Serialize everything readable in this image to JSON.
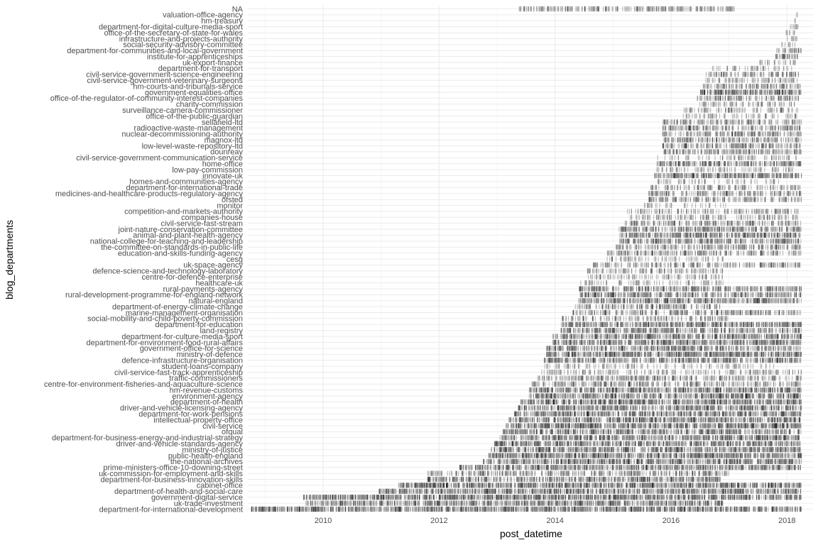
{
  "chart_data": {
    "type": "strip",
    "title": "",
    "xlabel": "post_datetime",
    "ylabel": "blog_departments",
    "x_ticks": [
      2010,
      2012,
      2014,
      2016,
      2018
    ],
    "x_tick_labels": [
      "2010",
      "2012",
      "2014",
      "2016",
      "2018"
    ],
    "xlim": [
      2008.7,
      2018.45
    ],
    "grid": true,
    "mark_color": "#000000",
    "mark_alpha": 0.3,
    "categories": [
      {
        "name": "NA",
        "start": 2013.35,
        "end": 2017.1,
        "density": 0.6
      },
      {
        "name": "valuation-office-agency",
        "start": 2018.15,
        "end": 2018.2,
        "density": 0.3
      },
      {
        "name": "hm-treasury",
        "start": 2018.1,
        "end": 2018.2,
        "density": 0.3
      },
      {
        "name": "department-for-digital-culture-media-sport",
        "start": 2018.05,
        "end": 2018.2,
        "density": 0.5
      },
      {
        "name": "office-of-the-secretary-of-state-for-wales",
        "start": 2017.95,
        "end": 2018.2,
        "density": 0.4
      },
      {
        "name": "infrastructure-and-projects-authority",
        "start": 2018.0,
        "end": 2018.2,
        "density": 0.5
      },
      {
        "name": "social-security-advisory-committee",
        "start": 2017.85,
        "end": 2018.15,
        "density": 0.3
      },
      {
        "name": "department-for-communities-and-local-government",
        "start": 2017.8,
        "end": 2018.25,
        "density": 0.6
      },
      {
        "name": "institute-for-apprenticeships",
        "start": 2017.8,
        "end": 2018.2,
        "density": 0.7
      },
      {
        "name": "uk-export-finance",
        "start": 2017.5,
        "end": 2018.15,
        "density": 0.4
      },
      {
        "name": "department-for-transport",
        "start": 2016.7,
        "end": 2018.2,
        "density": 0.4
      },
      {
        "name": "civil-service-government-science-engineering",
        "start": 2016.6,
        "end": 2018.2,
        "density": 0.6
      },
      {
        "name": "civil-service-government-veterinary-surgeons",
        "start": 2016.6,
        "end": 2018.2,
        "density": 0.5
      },
      {
        "name": "hm-courts-and-tribunals-service",
        "start": 2016.55,
        "end": 2018.25,
        "density": 0.6
      },
      {
        "name": "government-equalities-office",
        "start": 2016.5,
        "end": 2018.25,
        "density": 0.95
      },
      {
        "name": "office-of-the-regulator-of-community-interest-companies",
        "start": 2016.45,
        "end": 2018.2,
        "density": 0.6
      },
      {
        "name": "charity-commission",
        "start": 2016.45,
        "end": 2018.15,
        "density": 0.5
      },
      {
        "name": "surveillance-camera-commissioner",
        "start": 2016.2,
        "end": 2018.2,
        "density": 0.5
      },
      {
        "name": "office-of-the-public-guardian",
        "start": 2016.2,
        "end": 2018.2,
        "density": 0.4
      },
      {
        "name": "sellafield-ltd",
        "start": 2015.85,
        "end": 2018.25,
        "density": 0.6
      },
      {
        "name": "radioactive-waste-management",
        "start": 2015.85,
        "end": 2018.25,
        "density": 0.65
      },
      {
        "name": "nuclear-decommissioning-authority",
        "start": 2015.85,
        "end": 2018.25,
        "density": 0.65
      },
      {
        "name": "magnox-ltd",
        "start": 2015.85,
        "end": 2018.25,
        "density": 0.65
      },
      {
        "name": "low-level-waste-repository-ltd",
        "start": 2015.85,
        "end": 2018.25,
        "density": 0.65
      },
      {
        "name": "dounreay",
        "start": 2015.85,
        "end": 2018.25,
        "density": 0.65
      },
      {
        "name": "civil-service-government-communication-service",
        "start": 2015.75,
        "end": 2018.2,
        "density": 0.4
      },
      {
        "name": "home-office",
        "start": 2015.75,
        "end": 2018.25,
        "density": 0.75
      },
      {
        "name": "low-pay-commission",
        "start": 2015.75,
        "end": 2018.1,
        "density": 0.4
      },
      {
        "name": "innovate-uk",
        "start": 2015.7,
        "end": 2018.25,
        "density": 0.85
      },
      {
        "name": "homes-and-communities-agency",
        "start": 2015.7,
        "end": 2017.9,
        "density": 0.4
      },
      {
        "name": "department-for-international-trade",
        "start": 2015.65,
        "end": 2018.25,
        "density": 0.5
      },
      {
        "name": "medicines-and-healthcare-products-regulatory-agency",
        "start": 2015.6,
        "end": 2018.25,
        "density": 0.6
      },
      {
        "name": "ofsted",
        "start": 2015.6,
        "end": 2018.25,
        "density": 0.6
      },
      {
        "name": "monitor",
        "start": 2015.5,
        "end": 2017.0,
        "density": 0.3
      },
      {
        "name": "competition-and-markets-authority",
        "start": 2015.25,
        "end": 2018.2,
        "density": 0.5
      },
      {
        "name": "companies-house",
        "start": 2015.25,
        "end": 2018.2,
        "density": 0.5
      },
      {
        "name": "civil-service-fast-stream",
        "start": 2015.2,
        "end": 2018.25,
        "density": 0.6
      },
      {
        "name": "joint-nature-conservation-committee",
        "start": 2015.1,
        "end": 2018.25,
        "density": 0.7
      },
      {
        "name": "animal-and-plant-health-agency",
        "start": 2015.1,
        "end": 2018.25,
        "density": 0.8
      },
      {
        "name": "national-college-for-teaching-and-leadership",
        "start": 2015.1,
        "end": 2018.25,
        "density": 0.7
      },
      {
        "name": "the-committee-on-standards-in-public-life",
        "start": 2015.05,
        "end": 2018.25,
        "density": 0.6
      },
      {
        "name": "education-and-skills-funding-agency",
        "start": 2014.9,
        "end": 2018.25,
        "density": 0.6
      },
      {
        "name": "cesg",
        "start": 2014.85,
        "end": 2016.95,
        "density": 0.4
      },
      {
        "name": "uk-space-agency",
        "start": 2014.65,
        "end": 2018.25,
        "density": 0.55
      },
      {
        "name": "defence-science-and-technology-laboratory",
        "start": 2014.55,
        "end": 2016.9,
        "density": 0.5
      },
      {
        "name": "centre-for-defence-enterprise",
        "start": 2014.55,
        "end": 2016.9,
        "density": 0.45
      },
      {
        "name": "healthcare-uk",
        "start": 2014.4,
        "end": 2016.95,
        "density": 0.4
      },
      {
        "name": "rural-payments-agency",
        "start": 2014.4,
        "end": 2018.25,
        "density": 0.7
      },
      {
        "name": "rural-development-programme-for-england-network",
        "start": 2014.4,
        "end": 2018.25,
        "density": 0.7
      },
      {
        "name": "natural-england",
        "start": 2014.4,
        "end": 2018.25,
        "density": 0.8
      },
      {
        "name": "department-of-energy-climate-change",
        "start": 2014.35,
        "end": 2016.85,
        "density": 0.6
      },
      {
        "name": "marine-management-organisation",
        "start": 2014.3,
        "end": 2018.25,
        "density": 0.6
      },
      {
        "name": "social-mobility-and-child-poverty-commission",
        "start": 2014.1,
        "end": 2017.0,
        "density": 0.5
      },
      {
        "name": "department-for-education",
        "start": 2014.1,
        "end": 2018.25,
        "density": 0.85
      },
      {
        "name": "land-registry",
        "start": 2014.1,
        "end": 2018.25,
        "density": 0.7
      },
      {
        "name": "department-for-culture-media-sport",
        "start": 2013.95,
        "end": 2018.25,
        "density": 0.8
      },
      {
        "name": "department-for-environment-food-rural-affairs",
        "start": 2013.95,
        "end": 2018.25,
        "density": 0.85
      },
      {
        "name": "government-office-for-science",
        "start": 2013.85,
        "end": 2018.25,
        "density": 0.7
      },
      {
        "name": "ministry-of-defence",
        "start": 2013.85,
        "end": 2018.25,
        "density": 0.95
      },
      {
        "name": "defence-infrastructure-organisation",
        "start": 2013.8,
        "end": 2018.25,
        "density": 0.75
      },
      {
        "name": "student-loans-company",
        "start": 2013.8,
        "end": 2017.8,
        "density": 0.4
      },
      {
        "name": "civil-service-fast-track-apprenticeship",
        "start": 2013.75,
        "end": 2018.25,
        "density": 0.45
      },
      {
        "name": "traffic-commissioners",
        "start": 2013.7,
        "end": 2018.25,
        "density": 0.6
      },
      {
        "name": "centre-for-environment-fisheries-and-aquaculture-science",
        "start": 2013.6,
        "end": 2018.25,
        "density": 0.6
      },
      {
        "name": "hm-revenue-customs",
        "start": 2013.55,
        "end": 2018.25,
        "density": 0.85
      },
      {
        "name": "environment-agency",
        "start": 2013.5,
        "end": 2018.25,
        "density": 0.85
      },
      {
        "name": "department-of-health",
        "start": 2013.4,
        "end": 2018.25,
        "density": 0.9
      },
      {
        "name": "driver-and-vehicle-licensing-agency",
        "start": 2013.35,
        "end": 2018.25,
        "density": 0.8
      },
      {
        "name": "department-for-work-pensions",
        "start": 2013.3,
        "end": 2018.25,
        "density": 0.85
      },
      {
        "name": "intellectual-property-office",
        "start": 2013.2,
        "end": 2018.25,
        "density": 0.85
      },
      {
        "name": "civil-service",
        "start": 2013.15,
        "end": 2018.25,
        "density": 0.97
      },
      {
        "name": "ofqual",
        "start": 2013.1,
        "end": 2018.25,
        "density": 0.75
      },
      {
        "name": "department-for-business-energy-and-industrial-strategy",
        "start": 2013.05,
        "end": 2018.25,
        "density": 0.85
      },
      {
        "name": "driver-and-vehicle-standards-agency",
        "start": 2012.95,
        "end": 2018.25,
        "density": 0.85
      },
      {
        "name": "ministry-of-justice",
        "start": 2012.9,
        "end": 2018.25,
        "density": 0.85
      },
      {
        "name": "public-health-england",
        "start": 2012.85,
        "end": 2018.25,
        "density": 0.95
      },
      {
        "name": "the-national-archives",
        "start": 2012.75,
        "end": 2018.25,
        "density": 0.85
      },
      {
        "name": "prime-ministers-office-10-downing-street",
        "start": 2012.35,
        "end": 2018.25,
        "density": 0.8
      },
      {
        "name": "uk-commission-for-employment-and-skills",
        "start": 2011.8,
        "end": 2017.0,
        "density": 0.6
      },
      {
        "name": "department-for-business-innovation-skills",
        "start": 2011.8,
        "end": 2016.85,
        "density": 0.75
      },
      {
        "name": "cabinet-office",
        "start": 2011.3,
        "end": 2018.25,
        "density": 0.97
      },
      {
        "name": "department-of-health-and-social-care",
        "start": 2010.95,
        "end": 2018.25,
        "density": 0.85
      },
      {
        "name": "government-digital-service",
        "start": 2009.65,
        "end": 2018.25,
        "density": 0.95
      },
      {
        "name": "uk-trade-investment",
        "start": 2009.7,
        "end": 2016.9,
        "density": 0.8
      },
      {
        "name": "department-for-international-development",
        "start": 2008.75,
        "end": 2018.25,
        "density": 0.9
      }
    ]
  }
}
